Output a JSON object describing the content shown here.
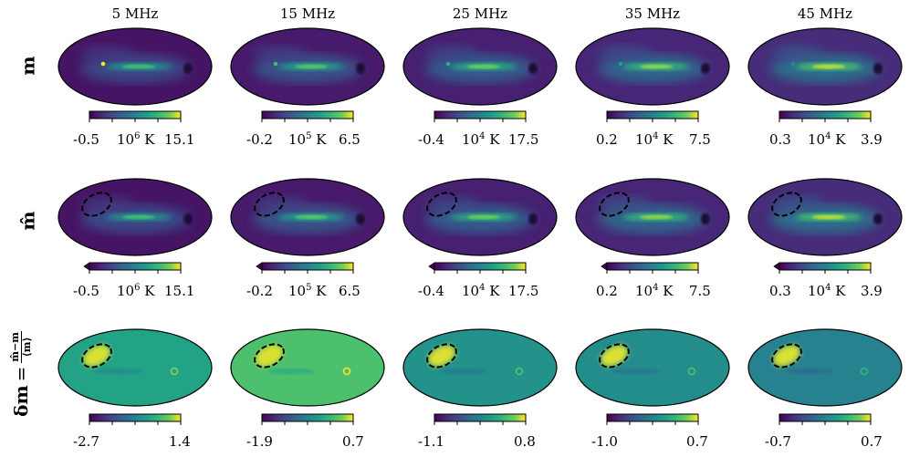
{
  "chart_data": {
    "type": "heatmap",
    "projection": "Mollweide all-sky maps",
    "colormap": "viridis",
    "frequencies": [
      "5 MHz",
      "15 MHz",
      "25 MHz",
      "35 MHz",
      "45 MHz"
    ],
    "rows": [
      {
        "label": "m",
        "description": "true sky map"
      },
      {
        "label": "m̂",
        "description": "reconstructed sky map with dashed masked region"
      },
      {
        "label_parts": {
          "lhs": "δm",
          "eq": "=",
          "numerator": "m̂−m",
          "denominator": "⟨m⟩"
        },
        "description": "fractional residual"
      }
    ],
    "colorbars_rows_1_2": [
      {
        "min": "-0.5",
        "max": "15.1",
        "unit_mantissa": "10",
        "unit_exponent": "6",
        "unit_K": "K"
      },
      {
        "min": "-0.2",
        "max": "6.5",
        "unit_mantissa": "10",
        "unit_exponent": "5",
        "unit_K": "K"
      },
      {
        "min": "-0.4",
        "max": "17.5",
        "unit_mantissa": "10",
        "unit_exponent": "4",
        "unit_K": "K"
      },
      {
        "min": "0.2",
        "max": "7.5",
        "unit_mantissa": "10",
        "unit_exponent": "4",
        "unit_K": "K"
      },
      {
        "min": "0.3",
        "max": "3.9",
        "unit_mantissa": "10",
        "unit_exponent": "4",
        "unit_K": "K"
      }
    ],
    "colorbars_row_3": [
      {
        "min": "-2.7",
        "max": "1.4"
      },
      {
        "min": "-1.9",
        "max": "0.7"
      },
      {
        "min": "-1.1",
        "max": "0.8"
      },
      {
        "min": "-1.0",
        "max": "0.7"
      },
      {
        "min": "-0.7",
        "max": "0.7"
      }
    ],
    "residual_background_level": [
      0.65,
      0.8,
      0.57,
      0.55,
      0.5
    ]
  },
  "colors": {
    "viridis_dark": "#440154",
    "viridis_mid": "#21918c",
    "viridis_bright": "#fde725"
  }
}
